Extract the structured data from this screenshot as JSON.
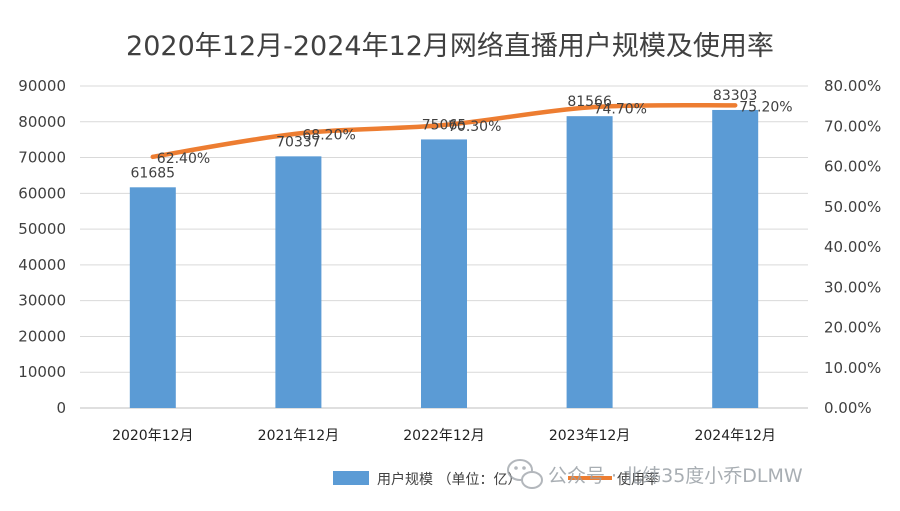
{
  "chart_data": {
    "type": "bar",
    "title": "2020年12月-2024年12月网络直播用户规模及使用率",
    "categories": [
      "2020年12月",
      "2021年12月",
      "2022年12月",
      "2023年12月",
      "2024年12月"
    ],
    "series": [
      {
        "name": "用户规模 （单位：亿）",
        "type": "bar",
        "axis": "left",
        "values": [
          61685,
          70337,
          75065,
          81566,
          83303
        ],
        "labels": [
          "61685",
          "70337",
          "75065",
          "81566",
          "83303"
        ],
        "color": "#5b9bd5"
      },
      {
        "name": "使用率",
        "type": "line",
        "axis": "right",
        "values": [
          62.4,
          68.2,
          70.3,
          74.7,
          75.2
        ],
        "labels": [
          "62.40%",
          "68.20%",
          "70.30%",
          "74.70%",
          "75.20%"
        ],
        "color": "#ed7d31"
      }
    ],
    "y_left": {
      "min": 0,
      "max": 90000,
      "ticks": [
        "0",
        "10000",
        "20000",
        "30000",
        "40000",
        "50000",
        "60000",
        "70000",
        "80000",
        "90000"
      ]
    },
    "y_right": {
      "min": 0,
      "max": 80,
      "ticks": [
        "0.00%",
        "10.00%",
        "20.00%",
        "30.00%",
        "40.00%",
        "50.00%",
        "60.00%",
        "70.00%",
        "80.00%"
      ]
    },
    "grid": true,
    "legend_position": "bottom"
  },
  "watermark": {
    "text": "公众号 · 北纬35度小乔DLMW",
    "icon": "wechat-icon"
  }
}
